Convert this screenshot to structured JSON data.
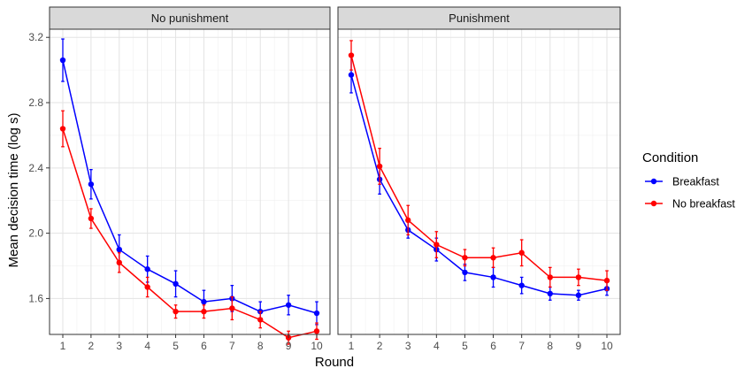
{
  "chart_data": {
    "type": "line",
    "xlabel": "Round",
    "ylabel": "Mean decision time (log s)",
    "x": [
      1,
      2,
      3,
      4,
      5,
      6,
      7,
      8,
      9,
      10
    ],
    "ylim": [
      1.38,
      3.25
    ],
    "yticks": [
      1.6,
      2.0,
      2.4,
      2.8,
      3.2
    ],
    "ytick_labels": [
      "1.6",
      "2.0",
      "2.4",
      "2.8",
      "3.2"
    ],
    "grid": true,
    "legend": {
      "title": "Condition",
      "placement": "right",
      "entries": [
        "Breakfast",
        "No breakfast"
      ]
    },
    "panels": [
      {
        "label": "No punishment",
        "series": [
          {
            "name": "Breakfast",
            "color": "#0000ff",
            "values": [
              3.06,
              2.3,
              1.9,
              1.78,
              1.69,
              1.58,
              1.6,
              1.52,
              1.56,
              1.51
            ],
            "err": [
              0.13,
              0.09,
              0.09,
              0.08,
              0.08,
              0.07,
              0.08,
              0.06,
              0.06,
              0.07
            ]
          },
          {
            "name": "No breakfast",
            "color": "#ff0000",
            "values": [
              2.64,
              2.09,
              1.82,
              1.67,
              1.52,
              1.52,
              1.54,
              1.47,
              1.36,
              1.4
            ],
            "err": [
              0.11,
              0.06,
              0.06,
              0.06,
              0.04,
              0.04,
              0.07,
              0.05,
              0.04,
              0.05
            ]
          }
        ]
      },
      {
        "label": "Punishment",
        "series": [
          {
            "name": "Breakfast",
            "color": "#0000ff",
            "values": [
              2.97,
              2.33,
              2.02,
              1.9,
              1.76,
              1.73,
              1.68,
              1.63,
              1.62,
              1.66
            ],
            "err": [
              0.11,
              0.09,
              0.05,
              0.07,
              0.05,
              0.06,
              0.05,
              0.04,
              0.03,
              0.04
            ]
          },
          {
            "name": "No breakfast",
            "color": "#ff0000",
            "values": [
              3.09,
              2.41,
              2.08,
              1.93,
              1.85,
              1.85,
              1.88,
              1.73,
              1.73,
              1.71
            ],
            "err": [
              0.09,
              0.11,
              0.09,
              0.08,
              0.05,
              0.06,
              0.08,
              0.06,
              0.05,
              0.06
            ]
          }
        ]
      }
    ]
  }
}
